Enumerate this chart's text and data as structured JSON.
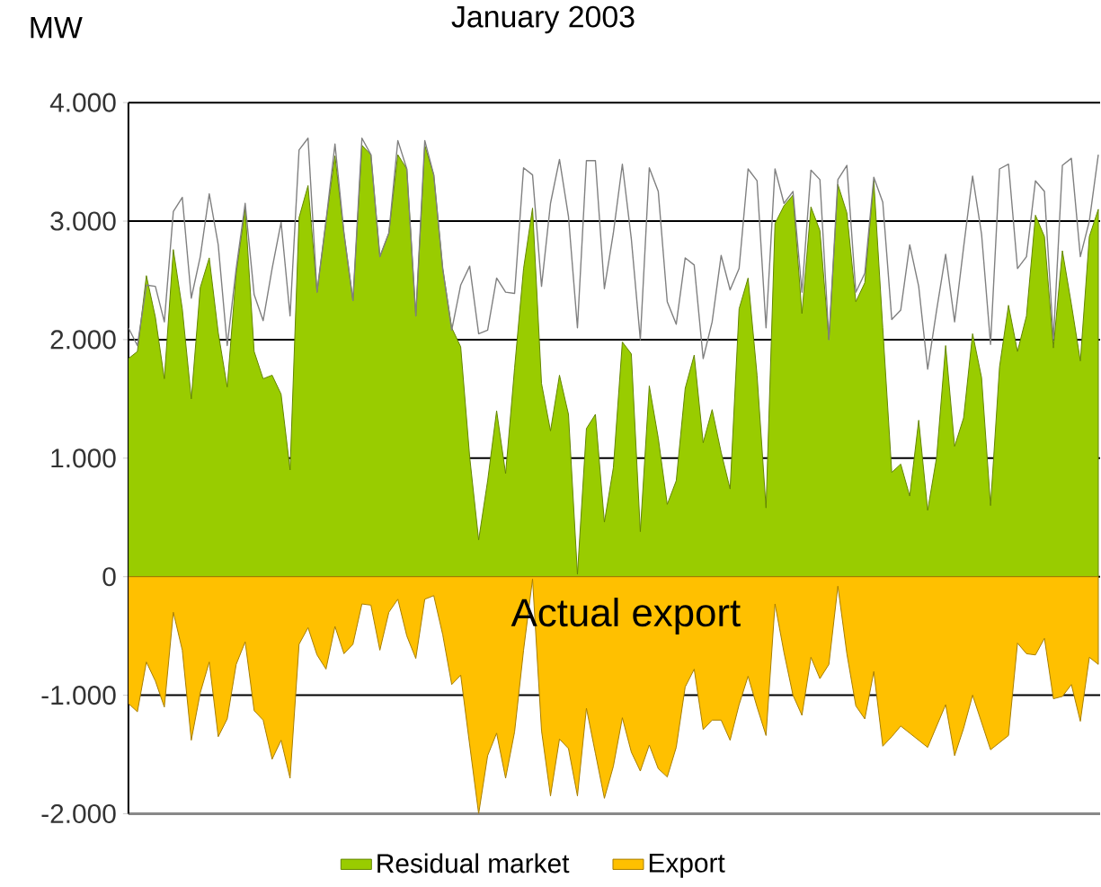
{
  "chart_data": {
    "type": "area",
    "title": "January 2003",
    "ylabel": "MW",
    "annotations": [
      "Actual export"
    ],
    "categories": [
      null,
      null,
      null,
      null,
      null,
      null,
      null,
      null,
      null,
      null,
      null,
      null,
      null,
      null,
      null,
      null,
      null,
      null,
      null,
      null,
      null,
      null,
      null,
      null,
      null,
      null,
      null,
      null,
      null,
      null,
      null,
      null,
      null,
      null,
      null,
      null,
      null,
      null,
      null,
      null,
      null,
      null,
      null,
      null,
      null,
      null,
      null,
      null,
      null,
      null,
      null,
      null,
      null,
      null,
      null,
      null,
      null,
      null,
      null,
      null,
      null,
      null,
      null,
      null,
      null,
      null,
      null,
      null,
      null,
      null,
      null,
      null,
      null,
      null,
      null,
      null,
      null,
      null,
      null,
      null,
      null,
      null,
      null,
      null,
      null,
      null,
      null,
      null,
      null,
      null,
      null,
      null,
      null,
      null,
      null,
      null,
      null,
      null,
      null,
      null,
      null,
      null,
      null,
      null,
      null,
      null,
      null,
      null,
      null
    ],
    "series": [
      {
        "type": "line",
        "color": "#808080",
        "values": [
          2100,
          1950,
          2460,
          2450,
          2150,
          3080,
          3200,
          2350,
          2700,
          3230,
          2800,
          1950,
          2600,
          3150,
          2380,
          2160,
          2600,
          2990,
          2200,
          3600,
          3700,
          2400,
          3000,
          3650,
          2900,
          2330,
          3700,
          3560,
          2700,
          2900,
          3680,
          3440,
          2200,
          3680,
          3390,
          2600,
          2080,
          2460,
          2620,
          2050,
          2080,
          2520,
          2400,
          2390,
          3450,
          3390,
          2450,
          3150,
          3520,
          3040,
          2100,
          3510,
          3510,
          2430,
          2900,
          3480,
          2850,
          2000,
          3450,
          3250,
          2320,
          2130,
          2690,
          2630,
          1840,
          2150,
          2710,
          2420,
          2600,
          3440,
          3340,
          2100,
          3440,
          3150,
          3250,
          2400,
          3430,
          3350,
          2000,
          3350,
          3470,
          2400,
          2560,
          3370,
          3160,
          2170,
          2250,
          2800,
          2450,
          1750,
          2250,
          2720,
          2150,
          2780,
          3380,
          2890,
          1960,
          3440,
          3480,
          2600,
          2700,
          3340,
          3250,
          2000,
          3470,
          3530,
          2700,
          3000,
          3560
        ]
      },
      {
        "name": "Residual market",
        "color": "#99cc00",
        "values": [
          1840,
          1900,
          2540,
          2190,
          1670,
          2760,
          2260,
          1500,
          2440,
          2690,
          2060,
          1600,
          2560,
          3100,
          1900,
          1670,
          1700,
          1540,
          900,
          3030,
          3300,
          2400,
          3000,
          3550,
          2900,
          2330,
          3640,
          3560,
          2700,
          2900,
          3560,
          3440,
          2200,
          3640,
          3390,
          2600,
          2100,
          1940,
          1010,
          310,
          810,
          1400,
          870,
          1760,
          2600,
          3110,
          1630,
          1230,
          1700,
          1370,
          20,
          1250,
          1370,
          460,
          920,
          1980,
          1880,
          380,
          1610,
          1170,
          610,
          810,
          1590,
          1870,
          1130,
          1410,
          1050,
          740,
          2260,
          2520,
          1700,
          580,
          2980,
          3130,
          3220,
          2220,
          3120,
          2920,
          2000,
          3310,
          3070,
          2320,
          2480,
          3340,
          2100,
          880,
          950,
          680,
          1320,
          560,
          1010,
          1950,
          1100,
          1340,
          2050,
          1680,
          600,
          1770,
          2290,
          1900,
          2200,
          3050,
          2870,
          1930,
          2750,
          2300,
          1820,
          2870,
          3100
        ]
      },
      {
        "name": "Export",
        "color": "#ffc000",
        "values": [
          -1070,
          -1140,
          -720,
          -880,
          -1100,
          -300,
          -620,
          -1380,
          -980,
          -720,
          -1350,
          -1200,
          -740,
          -550,
          -1130,
          -1210,
          -1540,
          -1380,
          -1700,
          -570,
          -430,
          -660,
          -780,
          -420,
          -650,
          -570,
          -230,
          -240,
          -620,
          -300,
          -190,
          -500,
          -690,
          -190,
          -160,
          -490,
          -910,
          -830,
          -1420,
          -2000,
          -1510,
          -1320,
          -1700,
          -1310,
          -620,
          -20,
          -1300,
          -1850,
          -1370,
          -1450,
          -1850,
          -1110,
          -1490,
          -1870,
          -1600,
          -1190,
          -1480,
          -1640,
          -1420,
          -1620,
          -1690,
          -1440,
          -930,
          -780,
          -1290,
          -1210,
          -1210,
          -1380,
          -1080,
          -840,
          -1100,
          -1340,
          -230,
          -640,
          -1000,
          -1170,
          -680,
          -860,
          -740,
          -80,
          -650,
          -1090,
          -1200,
          -800,
          -1430,
          -1350,
          -1260,
          -1320,
          -1380,
          -1440,
          -1260,
          -1080,
          -1510,
          -1280,
          -1000,
          -1230,
          -1460,
          -1400,
          -1340,
          -560,
          -650,
          -660,
          -520,
          -1030,
          -1010,
          -910,
          -1220,
          -680,
          -740
        ]
      }
    ],
    "ylim": [
      -2000,
      4000
    ],
    "yticks": [
      {
        "value": -2000,
        "label": "-2.000"
      },
      {
        "value": -1000,
        "label": "-1.000"
      },
      0,
      {
        "value": 1000,
        "label": "1.000"
      },
      {
        "value": 2000,
        "label": "2.000"
      },
      {
        "value": 3000,
        "label": "3.000"
      },
      {
        "value": 4000,
        "label": "4.000"
      }
    ],
    "grid": "y",
    "legend": "bottom",
    "tick_labels": "y"
  }
}
